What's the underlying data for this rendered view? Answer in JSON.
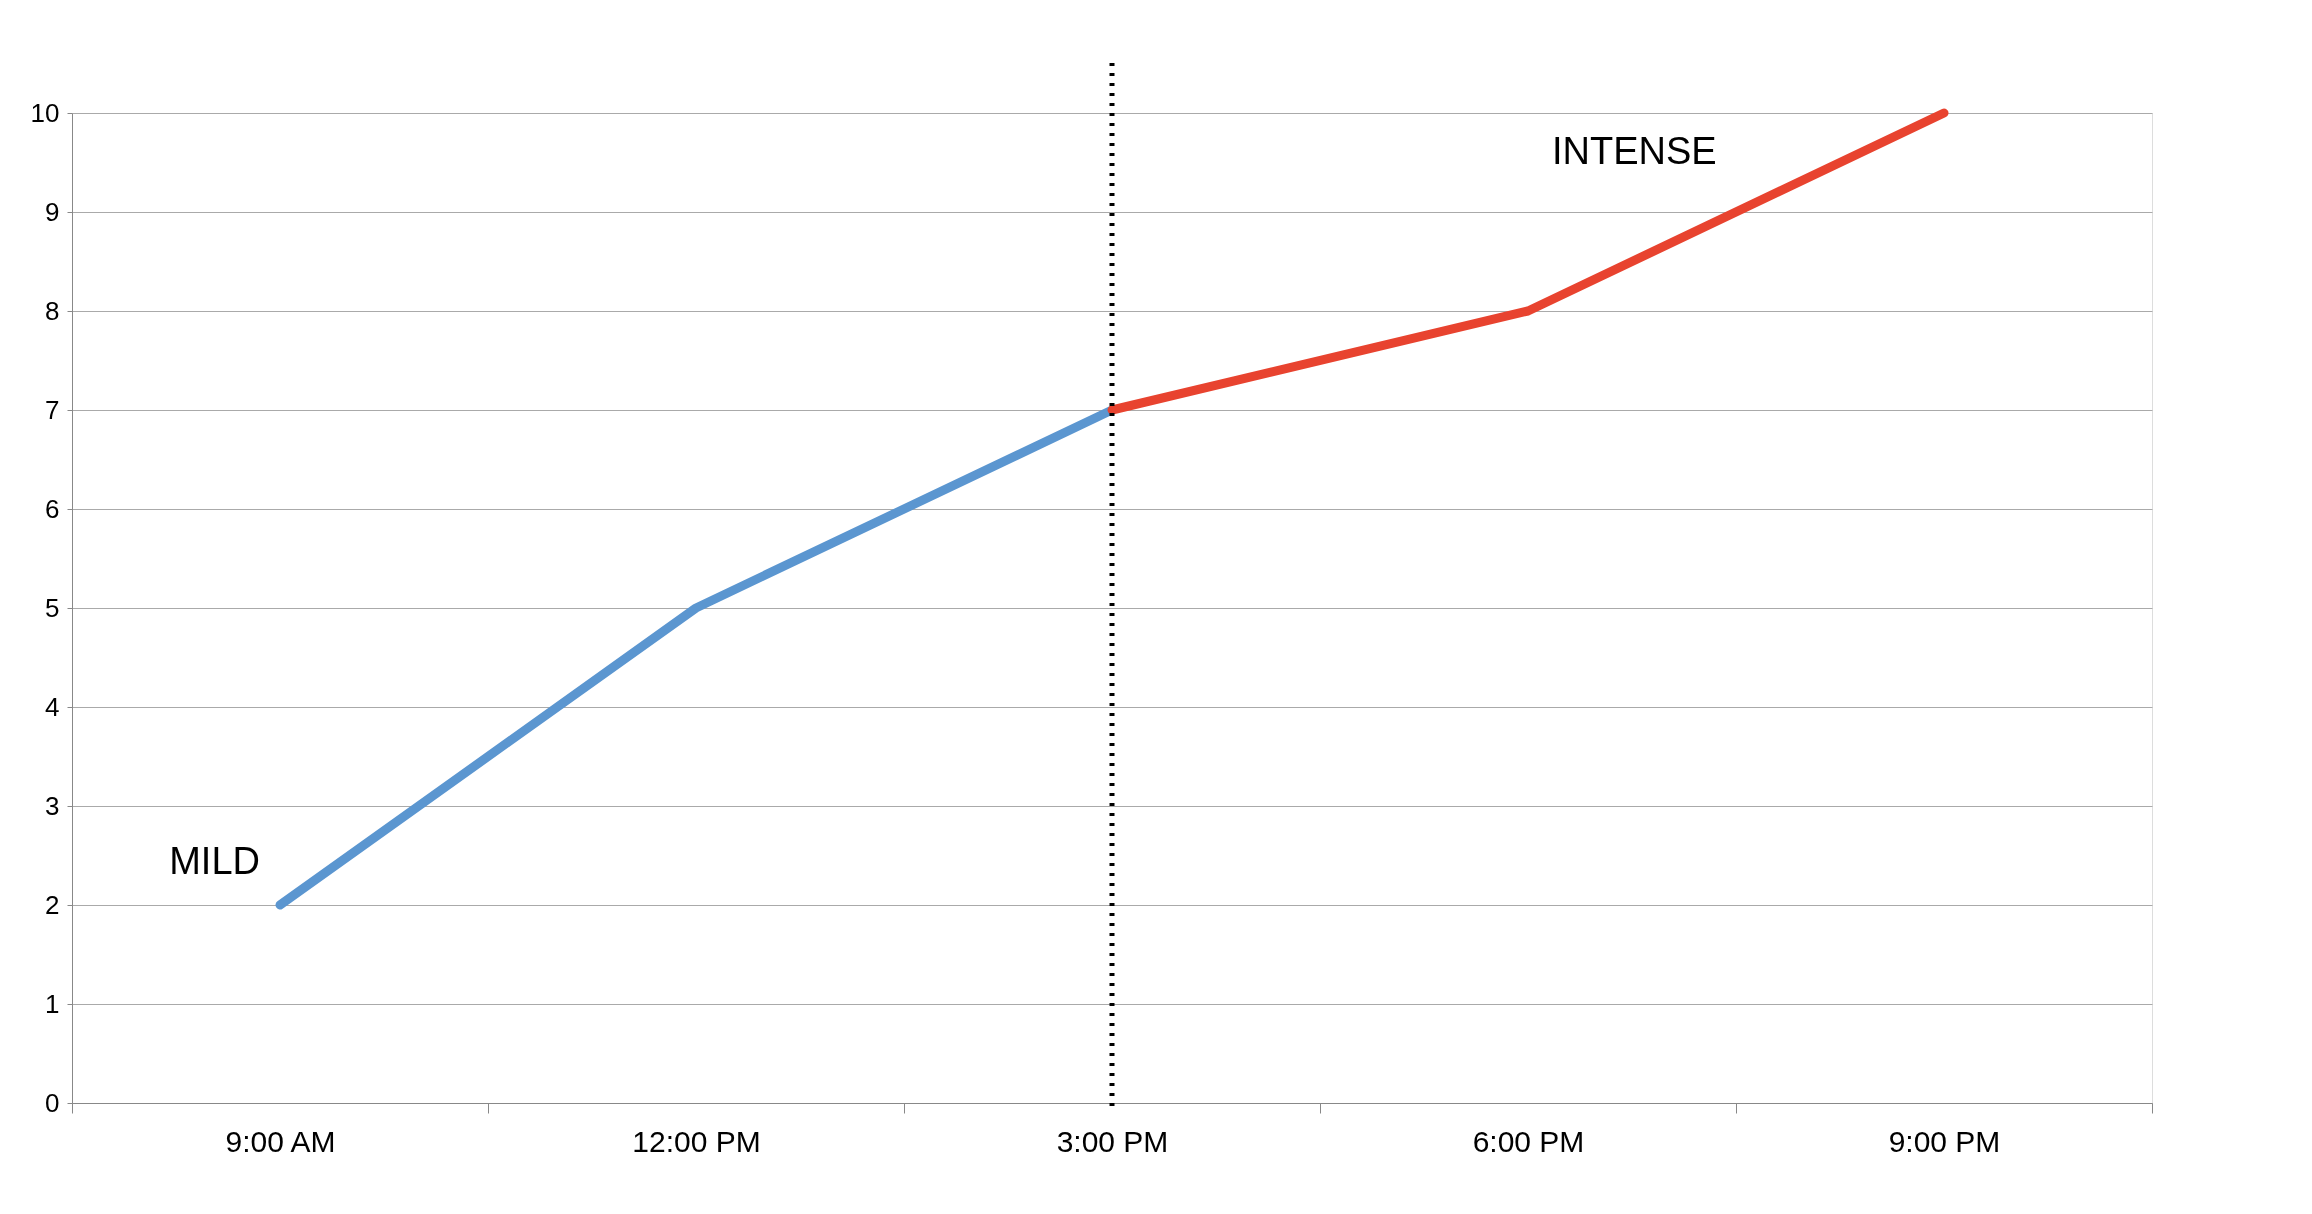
{
  "chart_data": {
    "type": "line",
    "categories": [
      "9:00 AM",
      "12:00 PM",
      "3:00 PM",
      "6:00 PM",
      "9:00 PM"
    ],
    "series": [
      {
        "color": "#5b96d0",
        "values": [
          2,
          5,
          7,
          null,
          null
        ]
      },
      {
        "color": "#e8432f",
        "values": [
          null,
          null,
          7,
          8,
          10
        ]
      }
    ],
    "ylim": [
      0,
      10
    ],
    "yticks": [
      0,
      1,
      2,
      3,
      4,
      5,
      6,
      7,
      8,
      9,
      10
    ],
    "grid": "y",
    "marker": "none",
    "line_style": "solid",
    "ref_lines": [
      {
        "axis": "x",
        "value": "3:00 PM",
        "color": "#000000",
        "line_style": "dotted"
      }
    ],
    "annotations": [
      {
        "text": "MILD",
        "x": "9:00 AM",
        "y": 2
      },
      "INTENSE"
    ]
  }
}
